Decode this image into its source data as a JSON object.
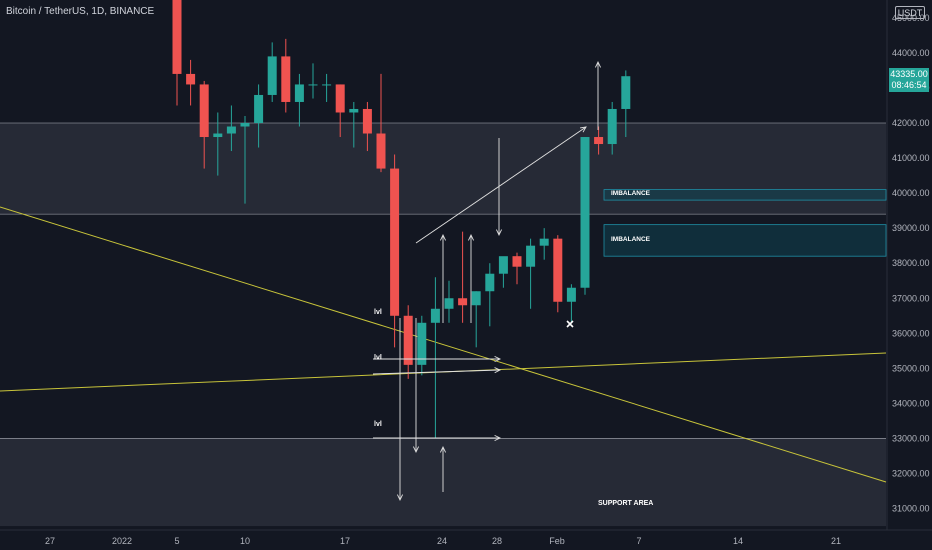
{
  "header": {
    "title": "Bitcoin / TetherUS, 1D, BINANCE",
    "currency": "USDT"
  },
  "last_price": {
    "price": "43335.00",
    "countdown": "08:46:54",
    "color": "#26a69a"
  },
  "colors": {
    "background": "#131722",
    "up": "#26a69a",
    "down": "#ef5350",
    "zone": "#2a2e39",
    "imbalance": "#0e4c5b",
    "trendline": "#c8c43a"
  },
  "chart_data": {
    "type": "candlestick",
    "title": "Bitcoin / TetherUS, 1D, BINANCE",
    "y_axis": {
      "position": "right",
      "ylim": [
        30500,
        46500
      ],
      "ticks": [
        "45000.00",
        "44000.00",
        "43000.00",
        "42000.00",
        "41000.00",
        "40000.00",
        "39000.00",
        "38000.00",
        "37000.00",
        "36000.00",
        "35000.00",
        "34000.00",
        "33000.00",
        "32000.00",
        "31000.00"
      ]
    },
    "x_axis": {
      "ticks": [
        "27",
        "2022",
        "5",
        "10",
        "17",
        "24",
        "28",
        "Feb",
        "7",
        "14",
        "21"
      ]
    },
    "candles": [
      {
        "date": "2022-01-05",
        "open": 47300,
        "high": 47600,
        "low": 42500,
        "close": 43400
      },
      {
        "date": "2022-01-06",
        "open": 43400,
        "high": 43800,
        "low": 42500,
        "close": 43100
      },
      {
        "date": "2022-01-07",
        "open": 43100,
        "high": 43200,
        "low": 40700,
        "close": 41600
      },
      {
        "date": "2022-01-08",
        "open": 41600,
        "high": 42300,
        "low": 40500,
        "close": 41700
      },
      {
        "date": "2022-01-09",
        "open": 41700,
        "high": 42500,
        "low": 41200,
        "close": 41900
      },
      {
        "date": "2022-01-10",
        "open": 41900,
        "high": 42200,
        "low": 39700,
        "close": 42000
      },
      {
        "date": "2022-01-11",
        "open": 42000,
        "high": 43100,
        "low": 41300,
        "close": 42800
      },
      {
        "date": "2022-01-12",
        "open": 42800,
        "high": 44300,
        "low": 42600,
        "close": 43900
      },
      {
        "date": "2022-01-13",
        "open": 43900,
        "high": 44400,
        "low": 42300,
        "close": 42600
      },
      {
        "date": "2022-01-14",
        "open": 42600,
        "high": 43400,
        "low": 41900,
        "close": 43100
      },
      {
        "date": "2022-01-15",
        "open": 43100,
        "high": 43700,
        "low": 42700,
        "close": 43100
      },
      {
        "date": "2022-01-16",
        "open": 43100,
        "high": 43400,
        "low": 42600,
        "close": 43100
      },
      {
        "date": "2022-01-17",
        "open": 43100,
        "high": 43100,
        "low": 41600,
        "close": 42300
      },
      {
        "date": "2022-01-18",
        "open": 42300,
        "high": 42600,
        "low": 41300,
        "close": 42400
      },
      {
        "date": "2022-01-19",
        "open": 42400,
        "high": 42600,
        "low": 41200,
        "close": 41700
      },
      {
        "date": "2022-01-20",
        "open": 41700,
        "high": 43400,
        "low": 40600,
        "close": 40700
      },
      {
        "date": "2022-01-21",
        "open": 40700,
        "high": 41100,
        "low": 35600,
        "close": 36500
      },
      {
        "date": "2022-01-22",
        "open": 36500,
        "high": 36800,
        "low": 34700,
        "close": 35100
      },
      {
        "date": "2022-01-23",
        "open": 35100,
        "high": 36500,
        "low": 34800,
        "close": 36300
      },
      {
        "date": "2022-01-24",
        "open": 36300,
        "high": 37600,
        "low": 33000,
        "close": 36700
      },
      {
        "date": "2022-01-25",
        "open": 36700,
        "high": 37500,
        "low": 36300,
        "close": 37000
      },
      {
        "date": "2022-01-26",
        "open": 37000,
        "high": 38900,
        "low": 36300,
        "close": 36800
      },
      {
        "date": "2022-01-27",
        "open": 36800,
        "high": 37200,
        "low": 35600,
        "close": 37200
      },
      {
        "date": "2022-01-28",
        "open": 37200,
        "high": 38000,
        "low": 36200,
        "close": 37700
      },
      {
        "date": "2022-01-29",
        "open": 37700,
        "high": 38100,
        "low": 37300,
        "close": 38200
      },
      {
        "date": "2022-01-30",
        "open": 38200,
        "high": 38300,
        "low": 37400,
        "close": 37900
      },
      {
        "date": "2022-01-31",
        "open": 37900,
        "high": 38700,
        "low": 36700,
        "close": 38500
      },
      {
        "date": "2022-02-01",
        "open": 38500,
        "high": 39000,
        "low": 38100,
        "close": 38700
      },
      {
        "date": "2022-02-02",
        "open": 38700,
        "high": 38800,
        "low": 36600,
        "close": 36900
      },
      {
        "date": "2022-02-03",
        "open": 36900,
        "high": 37400,
        "low": 36300,
        "close": 37300
      },
      {
        "date": "2022-02-04",
        "open": 37300,
        "high": 41600,
        "low": 37100,
        "close": 41600
      },
      {
        "date": "2022-02-05",
        "open": 41600,
        "high": 41900,
        "low": 41100,
        "close": 41400
      },
      {
        "date": "2022-02-06",
        "open": 41400,
        "high": 42600,
        "low": 41100,
        "close": 42400
      },
      {
        "date": "2022-02-07",
        "open": 42400,
        "high": 43500,
        "low": 41600,
        "close": 43335
      }
    ],
    "zones": [
      {
        "label": "",
        "from": 39400,
        "to": 42000
      },
      {
        "label": "SUPPORT AREA",
        "from": 30500,
        "to": 33000
      }
    ],
    "imbalances": [
      {
        "label": "IMBALANCE",
        "from": 39800,
        "to": 40100
      },
      {
        "label": "IMBALANCE",
        "from": 38200,
        "to": 39100
      }
    ],
    "annotations": [
      {
        "text": "lvl",
        "price": 36500
      },
      {
        "text": "lvl",
        "price": 35200
      },
      {
        "text": "lvl",
        "price": 33300
      }
    ]
  }
}
